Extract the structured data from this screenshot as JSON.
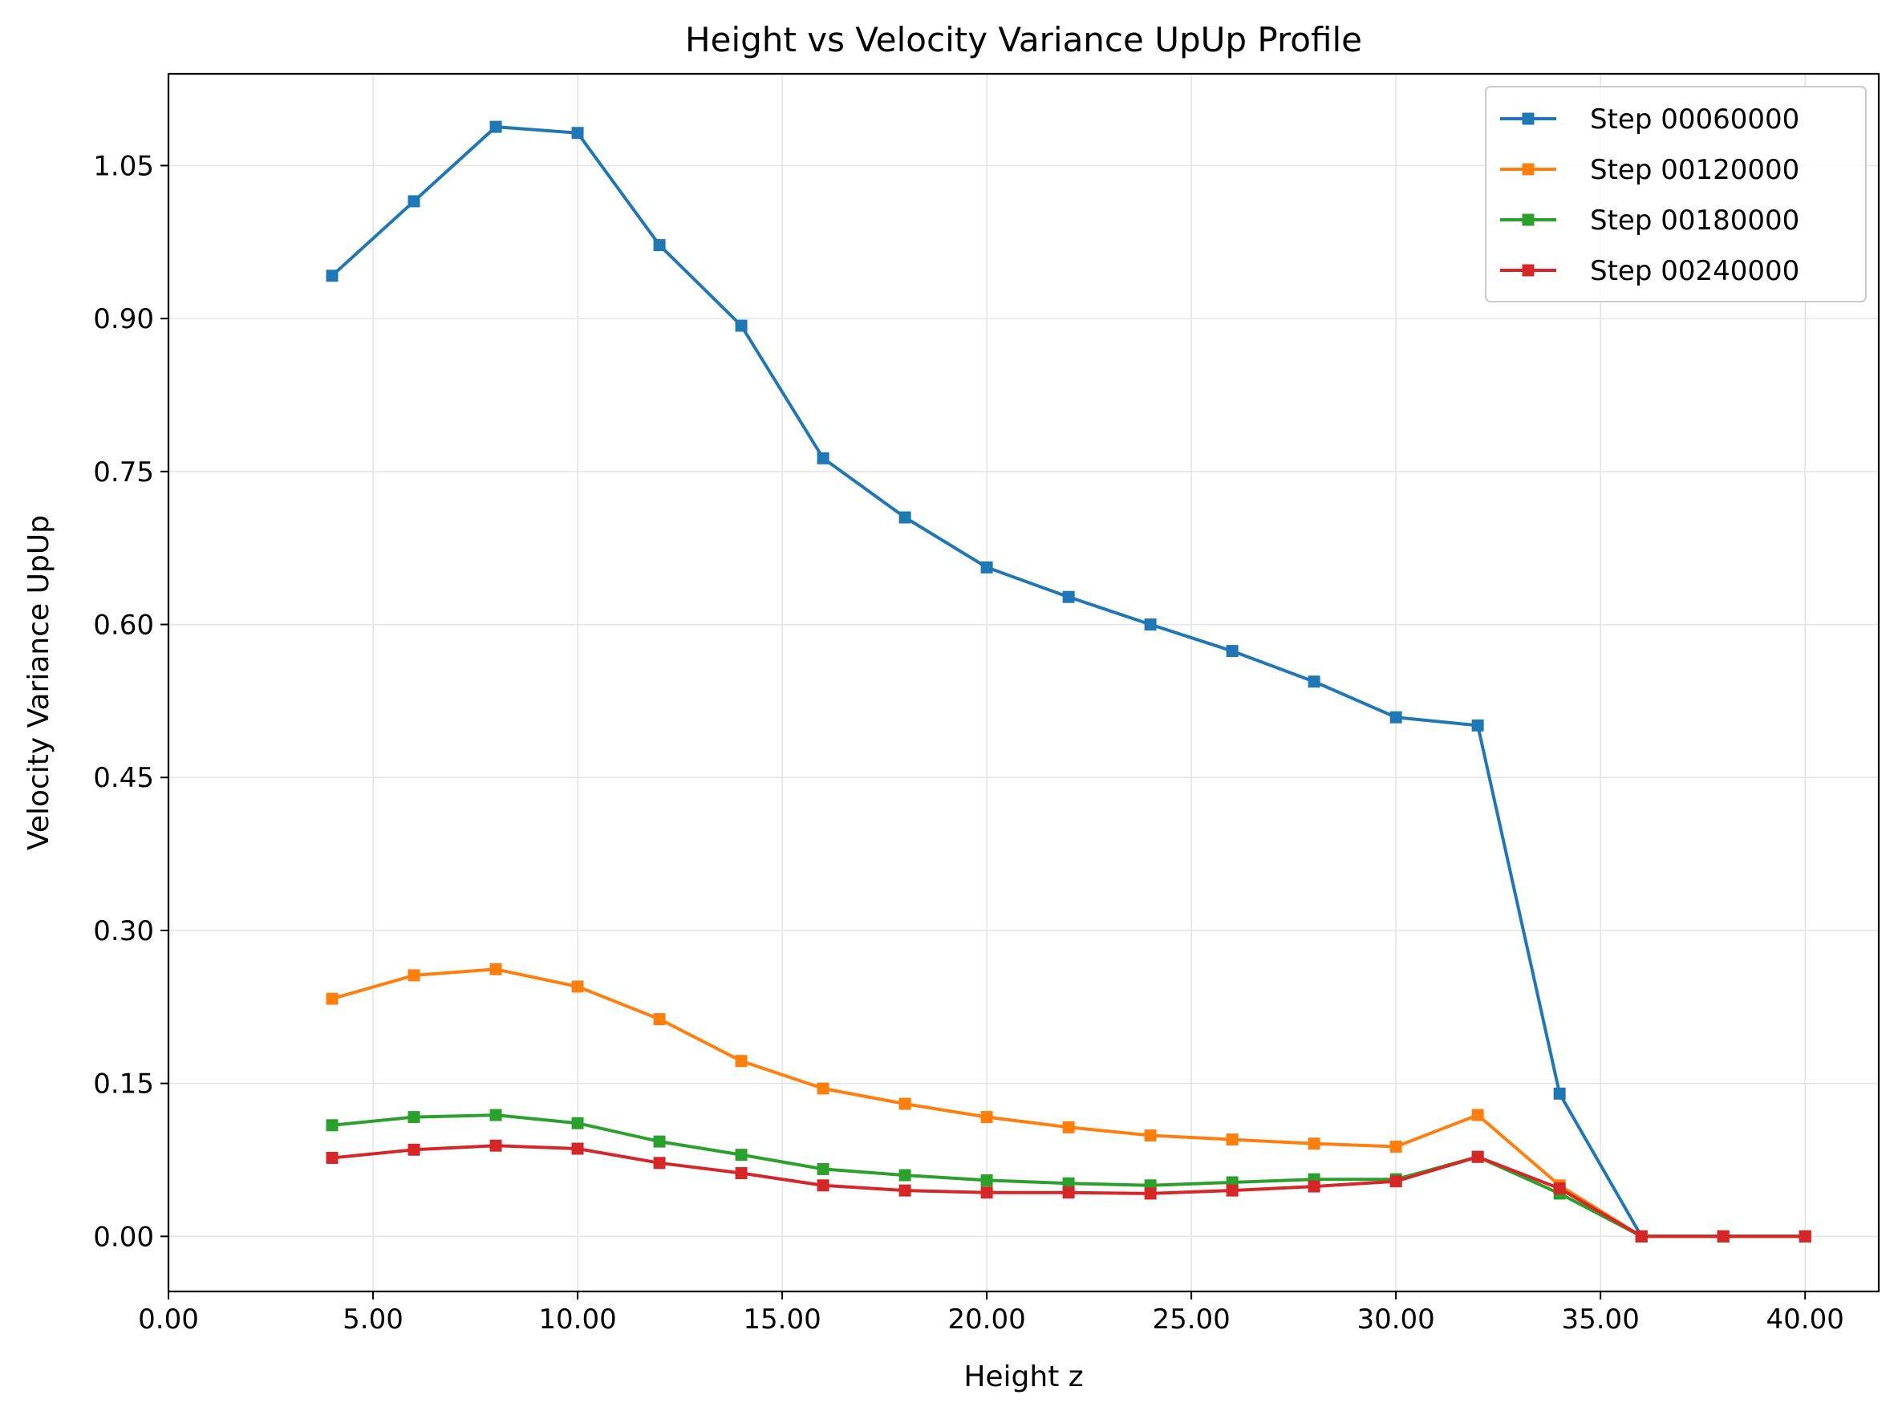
{
  "chart_data": {
    "type": "line",
    "title": "Height vs Velocity Variance UpUp Profile",
    "xlabel": "Height z",
    "ylabel": "Velocity Variance UpUp",
    "xlim": [
      0,
      41.8
    ],
    "ylim": [
      -0.054,
      1.14
    ],
    "xticks": [
      0,
      5,
      10,
      15,
      20,
      25,
      30,
      35,
      40
    ],
    "xtick_labels": [
      "0.00",
      "5.00",
      "10.00",
      "15.00",
      "20.00",
      "25.00",
      "30.00",
      "35.00",
      "40.00"
    ],
    "yticks": [
      0,
      0.15,
      0.3,
      0.45,
      0.6,
      0.75,
      0.9,
      1.05
    ],
    "ytick_labels": [
      "0.00",
      "0.15",
      "0.30",
      "0.45",
      "0.60",
      "0.75",
      "0.90",
      "1.05"
    ],
    "grid": true,
    "legend_position": "top-right",
    "marker": "square",
    "x": [
      4,
      6,
      8,
      10,
      12,
      14,
      16,
      18,
      20,
      22,
      24,
      26,
      28,
      30,
      32,
      34,
      36,
      38,
      40
    ],
    "series": [
      {
        "name": "Step 00060000",
        "color": "#1f77b4",
        "values": [
          0.942,
          1.015,
          1.088,
          1.082,
          0.972,
          0.893,
          0.763,
          0.705,
          0.656,
          0.627,
          0.6,
          0.574,
          0.544,
          0.509,
          0.501,
          0.14,
          0.0,
          0.0,
          0.0
        ]
      },
      {
        "name": "Step 00120000",
        "color": "#ff7f0e",
        "values": [
          0.233,
          0.256,
          0.262,
          0.245,
          0.213,
          0.172,
          0.145,
          0.13,
          0.117,
          0.107,
          0.099,
          0.095,
          0.091,
          0.088,
          0.119,
          0.05,
          0.0,
          0.0,
          0.0
        ]
      },
      {
        "name": "Step 00180000",
        "color": "#2ca02c",
        "values": [
          0.109,
          0.117,
          0.119,
          0.111,
          0.093,
          0.08,
          0.066,
          0.06,
          0.055,
          0.052,
          0.05,
          0.053,
          0.056,
          0.056,
          0.078,
          0.042,
          0.0,
          0.0,
          0.0
        ]
      },
      {
        "name": "Step 00240000",
        "color": "#d62728",
        "values": [
          0.077,
          0.085,
          0.089,
          0.086,
          0.072,
          0.062,
          0.05,
          0.045,
          0.043,
          0.043,
          0.042,
          0.045,
          0.049,
          0.054,
          0.078,
          0.047,
          0.0,
          0.0,
          0.0
        ]
      }
    ]
  }
}
